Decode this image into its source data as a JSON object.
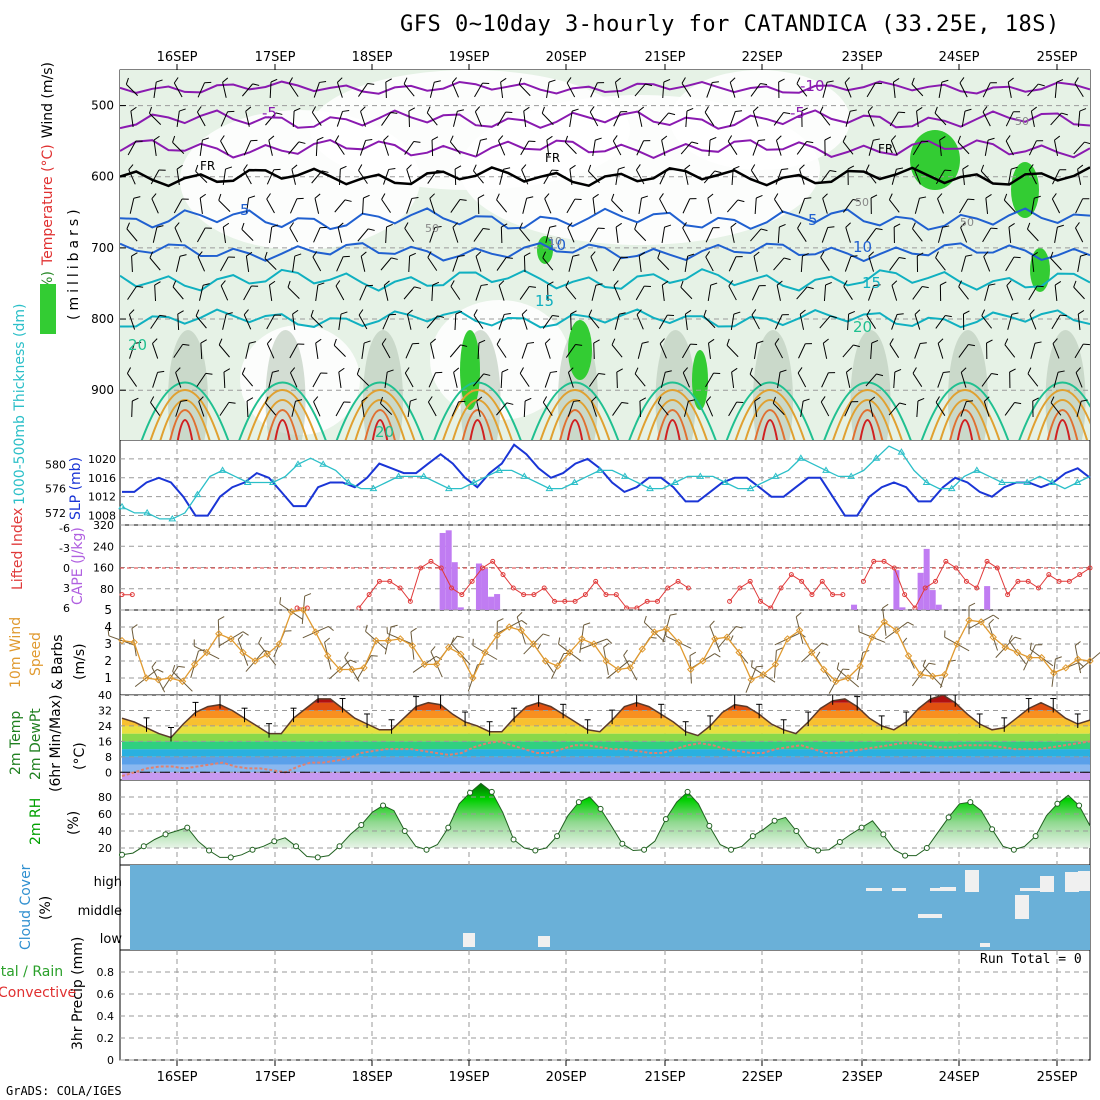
{
  "title": "GFS 0~10day 3-hourly for CATANDICA (33.25E, 18S)",
  "footer": "GrADS: COLA/IGES",
  "run_total": "Run Total = 0",
  "colors": {
    "grid": "#9a9a9a",
    "rh_green": "#33cc33",
    "rh_light": "#e6f2e6",
    "rh_gray": "#b8c8b8",
    "wind_barb": "#000000",
    "slp_line": "#1a35d6",
    "thickness_line": "#2bbfc8",
    "cape_bar": "#c07cf2",
    "lifted_line": "#e03a3a",
    "wind10_line": "#e09a30",
    "wind10_barb": "#6b5a3a",
    "rh2m_green": "#00c800",
    "cloud_blue": "#6ab0d8",
    "cloud_white": "#f0f0f0",
    "fr_line": "#000000",
    "isotherm_purple": "#8a1ab0",
    "isotherm_blue": "#2060d0",
    "isotherm_cyan": "#10b0c0",
    "isotherm_teal": "#20c090",
    "isotherm_orange": "#e0a030",
    "isotherm_red": "#d02020"
  },
  "chart_data": [
    {
      "type": "area",
      "panel": "upper-air",
      "y_tick_labels": [
        "500",
        "600",
        "700",
        "800",
        "900"
      ],
      "ylim": [
        970,
        450
      ],
      "ylabel_parts": [
        "RH (%)",
        "Temperature (°C)",
        "Wind (m/s)",
        "(millibars)"
      ],
      "x_tick_labels": [
        "16SEP",
        "17SEP",
        "18SEP",
        "19SEP",
        "20SEP",
        "21SEP",
        "22SEP",
        "23SEP",
        "24SEP",
        "25SEP"
      ],
      "isotherm_labels": [
        "-10",
        "-5",
        "FR",
        "5",
        "10",
        "15",
        "20"
      ],
      "rh_contour_labels": [
        "50",
        "10",
        "50",
        "50",
        "50"
      ]
    },
    {
      "type": "line",
      "panel": "slp-thickness",
      "ylabel_left": "1000-500mb Thickness (dm)",
      "ylabel_right": "SLP (mb)",
      "left_ticks": [
        "572",
        "576",
        "580"
      ],
      "right_ticks": [
        "1008",
        "1012",
        "1016",
        "1020"
      ],
      "ylim_left": [
        570,
        584
      ],
      "ylim_right": [
        1006,
        1024
      ],
      "series": [
        {
          "name": "SLP (mb)",
          "values": [
            1013,
            1013,
            1015,
            1016,
            1015,
            1012,
            1008,
            1008,
            1012,
            1014,
            1015,
            1017,
            1016,
            1013,
            1010,
            1010,
            1014,
            1015,
            1015,
            1014,
            1016,
            1019,
            1018,
            1017,
            1017,
            1019,
            1021,
            1019,
            1016,
            1014,
            1017,
            1019,
            1023,
            1021,
            1018,
            1016,
            1017,
            1019,
            1020,
            1018,
            1015,
            1013,
            1014,
            1016,
            1016,
            1014,
            1011,
            1011,
            1013,
            1015,
            1016,
            1016,
            1014,
            1012,
            1012,
            1014,
            1016,
            1016,
            1012,
            1008,
            1008,
            1012,
            1014,
            1015,
            1014,
            1011,
            1011,
            1014,
            1016,
            1015,
            1013,
            1012,
            1014,
            1015,
            1015,
            1014,
            1015,
            1017,
            1018,
            1016
          ]
        },
        {
          "name": "Thickness (dm)",
          "values": [
            573,
            572,
            572,
            571,
            571,
            572,
            575,
            578,
            579,
            578,
            577,
            577,
            577,
            578,
            580,
            581,
            580,
            579,
            577,
            576,
            576,
            577,
            578,
            578,
            578,
            577,
            576,
            576,
            577,
            578,
            579,
            579,
            578,
            577,
            576,
            576,
            577,
            578,
            579,
            579,
            578,
            577,
            576,
            576,
            577,
            578,
            578,
            578,
            577,
            576,
            576,
            577,
            578,
            579,
            581,
            580,
            579,
            578,
            578,
            579,
            581,
            583,
            582,
            579,
            577,
            576,
            576,
            578,
            579,
            578,
            577,
            577,
            577,
            578,
            577,
            576,
            577,
            578
          ]
        }
      ]
    },
    {
      "type": "bar",
      "panel": "cape-lifted-index",
      "ylabel_left": "Lifted Index",
      "ylabel_right": "CAPE (J/kg)",
      "left_ticks": [
        "-6",
        "-3",
        "0",
        "3",
        "6"
      ],
      "right_ticks": [
        "80",
        "160",
        "240",
        "320"
      ],
      "ylim_cape": [
        0,
        320
      ],
      "cape_bars": [
        {
          "x": 26.5,
          "value": 290
        },
        {
          "x": 27.0,
          "value": 300
        },
        {
          "x": 27.5,
          "value": 180
        },
        {
          "x": 28.0,
          "value": 10
        },
        {
          "x": 29.5,
          "value": 175
        },
        {
          "x": 30.0,
          "value": 155
        },
        {
          "x": 30.5,
          "value": 50
        },
        {
          "x": 31.0,
          "value": 60
        },
        {
          "x": 60.5,
          "value": 20
        },
        {
          "x": 64.0,
          "value": 150
        },
        {
          "x": 64.5,
          "value": 10
        },
        {
          "x": 66.0,
          "value": 140
        },
        {
          "x": 66.5,
          "value": 230
        },
        {
          "x": 67.0,
          "value": 75
        },
        {
          "x": 67.5,
          "value": 20
        },
        {
          "x": 71.5,
          "value": 90
        }
      ],
      "lifted_index": [
        4,
        4,
        null,
        null,
        null,
        null,
        null,
        null,
        null,
        null,
        null,
        null,
        null,
        null,
        null,
        null,
        null,
        6,
        6,
        null,
        null,
        null,
        null,
        6,
        4,
        2,
        2,
        3,
        5,
        0,
        -1,
        0,
        3,
        4,
        2,
        0,
        -1,
        1,
        3,
        4,
        4,
        3,
        5,
        5,
        5,
        4,
        2,
        4,
        4,
        6,
        6,
        5,
        5,
        3,
        2,
        3,
        null,
        null,
        null,
        5,
        3,
        2,
        5,
        6,
        3,
        1,
        2,
        4,
        2,
        4,
        4,
        null,
        2,
        -1,
        -1,
        0,
        4,
        6,
        3,
        2,
        -1,
        0,
        2,
        3,
        -1,
        0,
        4,
        2,
        2,
        3,
        1,
        2,
        2,
        1,
        0
      ]
    },
    {
      "type": "line",
      "panel": "10m-wind",
      "ylabel": "10m Wind Speed & Barbs (m/s)",
      "y_ticks": [
        "1",
        "2",
        "3",
        "4",
        "5"
      ],
      "ylim": [
        0,
        5
      ],
      "series": [
        {
          "name": "10m Wind Speed",
          "values": [
            3.2,
            3.1,
            1.0,
            0.9,
            1.0,
            0.8,
            1.8,
            2.5,
            3.6,
            3.3,
            2.5,
            2.0,
            2.4,
            3.0,
            4.9,
            5.0,
            3.7,
            2.3,
            1.5,
            1.5,
            1.6,
            3.2,
            3.2,
            3.3,
            2.9,
            1.8,
            1.8,
            2.8,
            2.4,
            1.0,
            2.5,
            3.5,
            4.0,
            3.8,
            3.0,
            2.0,
            1.7,
            2.5,
            3.3,
            3.0,
            2.0,
            1.5,
            1.6,
            2.7,
            3.7,
            3.9,
            3.1,
            1.5,
            2.0,
            3.3,
            3.4,
            2.5,
            0.9,
            1.2,
            1.8,
            3.3,
            3.8,
            2.5,
            1.5,
            0.8,
            1.0,
            1.7,
            3.4,
            4.3,
            3.8,
            2.3,
            1.2,
            1.1,
            1.2,
            3.0,
            4.4,
            4.3,
            3.4,
            2.8,
            2.5,
            2.2,
            2.2,
            1.3,
            1.6,
            2.1,
            2.0
          ]
        }
      ]
    },
    {
      "type": "area",
      "panel": "2m-temp-dewpoint",
      "ylabel": "2m Temp 2m DewPt (6hr Min/Max) (°C)",
      "y_ticks": [
        "0",
        "8",
        "16",
        "24",
        "32",
        "40"
      ],
      "ylim": [
        -4,
        40
      ],
      "series": [
        {
          "name": "2m Temp",
          "values": [
            28,
            26,
            23,
            20,
            18,
            25,
            31,
            34,
            35,
            32,
            28,
            24,
            20,
            20,
            28,
            33,
            38,
            38,
            33,
            28,
            25,
            22,
            22,
            28,
            34,
            36,
            35,
            30,
            26,
            24,
            21,
            21,
            28,
            34,
            36,
            34,
            30,
            26,
            22,
            21,
            27,
            34,
            36,
            34,
            30,
            26,
            21,
            19,
            24,
            31,
            35,
            34,
            30,
            25,
            22,
            20,
            26,
            33,
            37,
            38,
            34,
            28,
            24,
            22,
            26,
            33,
            38,
            40,
            36,
            30,
            25,
            22,
            23,
            28,
            33,
            36,
            33,
            28,
            25,
            27
          ]
        },
        {
          "name": "2m DewPt",
          "values": [
            -2,
            0,
            2,
            3,
            3,
            2,
            3,
            4,
            5,
            3,
            2,
            2,
            1,
            0,
            3,
            5,
            5,
            6,
            7,
            10,
            11,
            12,
            12,
            12,
            11,
            10,
            9,
            10,
            13,
            15,
            16,
            14,
            12,
            10,
            10,
            12,
            14,
            14,
            13,
            12,
            12,
            11,
            10,
            10,
            12,
            14,
            15,
            14,
            12,
            11,
            10,
            10,
            12,
            13,
            14,
            12,
            10,
            10,
            11,
            12,
            13,
            14,
            15,
            15,
            14,
            13,
            13,
            14,
            14,
            14,
            13,
            12,
            12,
            12,
            13,
            14,
            15,
            16
          ]
        }
      ]
    },
    {
      "type": "area",
      "panel": "2m-rh",
      "ylabel": "2m RH (%)",
      "y_ticks": [
        "20",
        "40",
        "60",
        "80"
      ],
      "ylim": [
        0,
        100
      ],
      "series": [
        {
          "name": "2m RH",
          "values": [
            12,
            14,
            22,
            30,
            36,
            40,
            44,
            28,
            17,
            9,
            9,
            12,
            18,
            22,
            28,
            32,
            22,
            10,
            9,
            11,
            22,
            36,
            47,
            62,
            70,
            64,
            40,
            22,
            18,
            24,
            44,
            72,
            85,
            96,
            86,
            62,
            30,
            20,
            17,
            20,
            34,
            58,
            74,
            80,
            66,
            46,
            25,
            17,
            18,
            28,
            54,
            74,
            86,
            72,
            46,
            24,
            18,
            22,
            34,
            42,
            52,
            56,
            40,
            22,
            17,
            18,
            27,
            36,
            44,
            52,
            36,
            18,
            11,
            11,
            20,
            38,
            56,
            72,
            74,
            64,
            42,
            22,
            18,
            22,
            34,
            58,
            72,
            82,
            70,
            46
          ]
        }
      ]
    },
    {
      "type": "heatmap",
      "panel": "cloud-cover",
      "ylabel": "Cloud Cover (%)",
      "y_ticks": [
        "low",
        "middle",
        "high"
      ]
    },
    {
      "type": "bar",
      "panel": "precip",
      "ylabel_left": "Total / Rain Convective",
      "ylabel_right": "3hr Precip (mm)",
      "y_ticks": [
        "0",
        "0.2",
        "0.4",
        "0.6",
        "0.8"
      ],
      "ylim": [
        0,
        1.0
      ],
      "values": []
    }
  ]
}
